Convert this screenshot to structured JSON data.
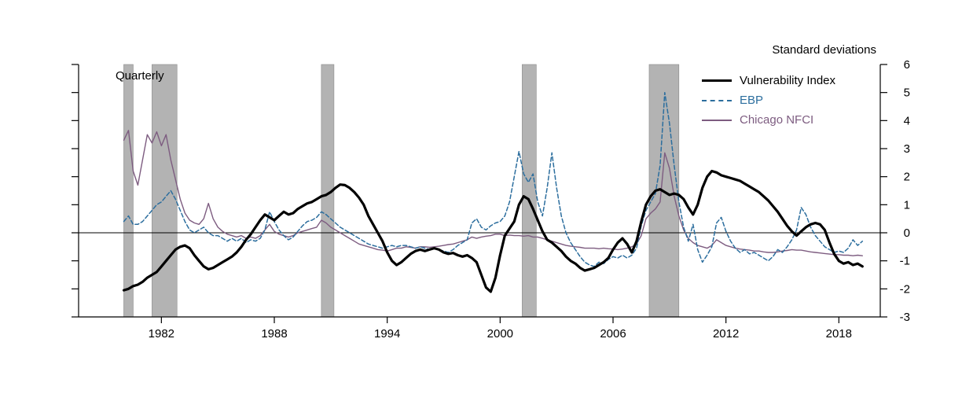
{
  "figure": {
    "frequency_label": "Quarterly",
    "units_label": "Standard deviations"
  },
  "chart_data": {
    "type": "line",
    "title": "",
    "xlabel": "",
    "ylabel": "Standard deviations",
    "grid": false,
    "legend_position": "top-right-inside",
    "x_axis": {
      "min": 1977.6,
      "max": 2020.2,
      "ticks": [
        1982,
        1988,
        1994,
        2000,
        2006,
        2012,
        2018
      ]
    },
    "y_axis": {
      "min": -3,
      "max": 6,
      "tick_step": 1
    },
    "x_start": 1980.0,
    "x_step": 0.25,
    "recessions": [
      [
        1980.0,
        1980.5
      ],
      [
        1981.5,
        1982.83
      ],
      [
        1990.5,
        1991.17
      ],
      [
        2001.17,
        2001.92
      ],
      [
        2007.92,
        2009.5
      ]
    ],
    "colors": {
      "recession_fill": "#b3b3b3",
      "recession_border": "#8a8a8a",
      "zero_line": "#000000",
      "axis": "#000000"
    },
    "series": [
      {
        "id": "vulnerability-index",
        "name": "Vulnerability Index",
        "color": "#000000",
        "width": 3.2,
        "dash": "",
        "values": [
          -2.05,
          -2.0,
          -1.9,
          -1.85,
          -1.75,
          -1.6,
          -1.5,
          -1.4,
          -1.2,
          -1.0,
          -0.8,
          -0.6,
          -0.5,
          -0.45,
          -0.55,
          -0.8,
          -1.0,
          -1.2,
          -1.3,
          -1.25,
          -1.15,
          -1.05,
          -0.95,
          -0.85,
          -0.7,
          -0.5,
          -0.25,
          -0.05,
          0.2,
          0.45,
          0.65,
          0.55,
          0.45,
          0.6,
          0.75,
          0.65,
          0.7,
          0.85,
          0.95,
          1.05,
          1.1,
          1.2,
          1.3,
          1.35,
          1.45,
          1.6,
          1.72,
          1.7,
          1.6,
          1.45,
          1.25,
          1.0,
          0.6,
          0.3,
          0.0,
          -0.3,
          -0.7,
          -1.0,
          -1.15,
          -1.05,
          -0.9,
          -0.75,
          -0.65,
          -0.6,
          -0.65,
          -0.6,
          -0.55,
          -0.6,
          -0.7,
          -0.75,
          -0.72,
          -0.8,
          -0.85,
          -0.8,
          -0.9,
          -1.05,
          -1.5,
          -1.95,
          -2.1,
          -1.6,
          -0.8,
          -0.1,
          0.15,
          0.4,
          1.0,
          1.3,
          1.2,
          0.85,
          0.45,
          0.05,
          -0.25,
          -0.35,
          -0.5,
          -0.65,
          -0.85,
          -1.0,
          -1.1,
          -1.25,
          -1.35,
          -1.3,
          -1.25,
          -1.15,
          -1.05,
          -0.9,
          -0.6,
          -0.35,
          -0.2,
          -0.4,
          -0.7,
          -0.3,
          0.4,
          1.0,
          1.3,
          1.5,
          1.55,
          1.45,
          1.35,
          1.4,
          1.35,
          1.2,
          0.9,
          0.65,
          1.0,
          1.6,
          2.0,
          2.2,
          2.15,
          2.05,
          2.0,
          1.95,
          1.9,
          1.85,
          1.75,
          1.65,
          1.55,
          1.45,
          1.3,
          1.15,
          0.95,
          0.75,
          0.5,
          0.25,
          0.05,
          -0.1,
          0.05,
          0.2,
          0.3,
          0.35,
          0.3,
          0.1,
          -0.35,
          -0.75,
          -1.0,
          -1.1,
          -1.05,
          -1.15,
          -1.1,
          -1.2
        ]
      },
      {
        "id": "ebp",
        "name": "EBP",
        "color": "#2c6e9e",
        "width": 1.5,
        "dash": "5 3",
        "values": [
          0.4,
          0.6,
          0.3,
          0.3,
          0.4,
          0.6,
          0.8,
          1.0,
          1.1,
          1.3,
          1.5,
          1.2,
          0.8,
          0.4,
          0.1,
          0.0,
          0.1,
          0.2,
          0.0,
          -0.1,
          -0.1,
          -0.2,
          -0.3,
          -0.2,
          -0.3,
          -0.2,
          -0.35,
          -0.25,
          -0.3,
          -0.2,
          0.1,
          0.75,
          0.4,
          0.1,
          -0.1,
          -0.25,
          -0.15,
          0.05,
          0.25,
          0.4,
          0.45,
          0.55,
          0.75,
          0.65,
          0.5,
          0.35,
          0.2,
          0.1,
          0.0,
          -0.1,
          -0.2,
          -0.3,
          -0.4,
          -0.45,
          -0.5,
          -0.55,
          -0.5,
          -0.45,
          -0.5,
          -0.45,
          -0.45,
          -0.5,
          -0.55,
          -0.5,
          -0.55,
          -0.6,
          -0.55,
          -0.6,
          -0.65,
          -0.7,
          -0.6,
          -0.45,
          -0.35,
          -0.25,
          0.35,
          0.5,
          0.2,
          0.1,
          0.25,
          0.35,
          0.4,
          0.6,
          1.1,
          2.0,
          2.9,
          2.1,
          1.8,
          2.1,
          1.1,
          0.6,
          1.6,
          2.85,
          1.6,
          0.6,
          0.0,
          -0.35,
          -0.6,
          -0.85,
          -1.05,
          -1.15,
          -1.2,
          -1.05,
          -1.1,
          -0.95,
          -0.85,
          -0.9,
          -0.8,
          -0.9,
          -0.8,
          -0.55,
          0.25,
          0.8,
          1.1,
          1.4,
          2.4,
          5.0,
          3.9,
          2.4,
          1.1,
          0.2,
          -0.3,
          0.3,
          -0.6,
          -1.05,
          -0.8,
          -0.5,
          0.35,
          0.55,
          0.05,
          -0.3,
          -0.55,
          -0.7,
          -0.6,
          -0.75,
          -0.7,
          -0.8,
          -0.9,
          -1.0,
          -0.85,
          -0.6,
          -0.7,
          -0.5,
          -0.25,
          0.1,
          0.9,
          0.65,
          0.2,
          -0.1,
          -0.3,
          -0.5,
          -0.6,
          -0.7,
          -0.65,
          -0.7,
          -0.55,
          -0.25,
          -0.45,
          -0.3
        ]
      },
      {
        "id": "chicago-nfci",
        "name": "Chicago NFCI",
        "color": "#7d5c80",
        "width": 1.4,
        "dash": "",
        "values": [
          3.3,
          3.65,
          2.2,
          1.7,
          2.6,
          3.5,
          3.2,
          3.6,
          3.1,
          3.5,
          2.6,
          1.9,
          1.2,
          0.7,
          0.45,
          0.35,
          0.3,
          0.5,
          1.05,
          0.5,
          0.2,
          0.05,
          -0.05,
          -0.1,
          -0.15,
          -0.1,
          -0.2,
          -0.15,
          -0.2,
          -0.1,
          0.1,
          0.3,
          0.05,
          -0.05,
          -0.1,
          -0.15,
          -0.1,
          0.0,
          0.05,
          0.1,
          0.15,
          0.2,
          0.45,
          0.35,
          0.2,
          0.1,
          0.0,
          -0.1,
          -0.2,
          -0.3,
          -0.4,
          -0.45,
          -0.5,
          -0.55,
          -0.6,
          -0.62,
          -0.65,
          -0.6,
          -0.55,
          -0.55,
          -0.5,
          -0.52,
          -0.55,
          -0.5,
          -0.5,
          -0.52,
          -0.5,
          -0.48,
          -0.45,
          -0.42,
          -0.4,
          -0.35,
          -0.3,
          -0.25,
          -0.15,
          -0.2,
          -0.15,
          -0.12,
          -0.1,
          -0.05,
          -0.05,
          -0.1,
          -0.08,
          -0.1,
          -0.1,
          -0.12,
          -0.1,
          -0.15,
          -0.15,
          -0.2,
          -0.25,
          -0.3,
          -0.35,
          -0.4,
          -0.45,
          -0.48,
          -0.5,
          -0.52,
          -0.55,
          -0.55,
          -0.55,
          -0.57,
          -0.55,
          -0.57,
          -0.58,
          -0.6,
          -0.58,
          -0.55,
          -0.5,
          -0.4,
          -0.1,
          0.5,
          0.7,
          0.85,
          1.1,
          2.85,
          2.3,
          1.3,
          0.6,
          0.1,
          -0.2,
          -0.35,
          -0.45,
          -0.5,
          -0.55,
          -0.45,
          -0.25,
          -0.35,
          -0.45,
          -0.5,
          -0.55,
          -0.58,
          -0.6,
          -0.62,
          -0.65,
          -0.65,
          -0.68,
          -0.7,
          -0.7,
          -0.68,
          -0.65,
          -0.63,
          -0.6,
          -0.62,
          -0.62,
          -0.65,
          -0.68,
          -0.7,
          -0.72,
          -0.74,
          -0.76,
          -0.78,
          -0.78,
          -0.8,
          -0.8,
          -0.82,
          -0.8,
          -0.82
        ]
      }
    ]
  }
}
